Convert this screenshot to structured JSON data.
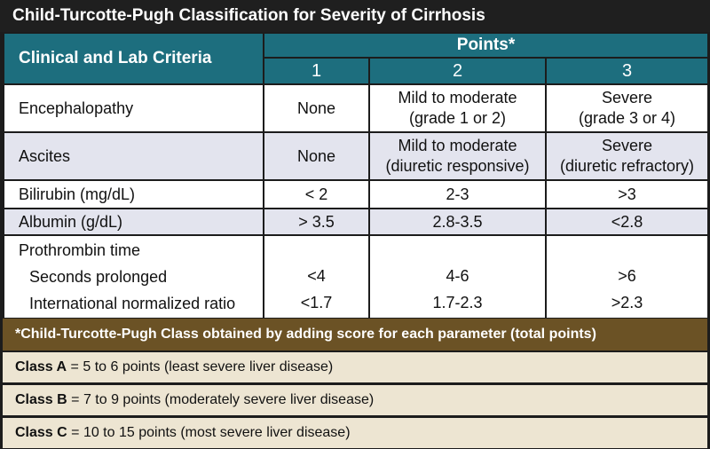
{
  "title": "Child-Turcotte-Pugh Classification for Severity of Cirrhosis",
  "header": {
    "criteria_label": "Clinical and Lab Criteria",
    "points_label": "Points*",
    "point_columns": [
      "1",
      "2",
      "3"
    ]
  },
  "rows": [
    {
      "criterion": "Encephalopathy",
      "p1": "None",
      "p2_line1": "Mild to moderate",
      "p2_line2": "(grade 1 or 2)",
      "p3_line1": "Severe",
      "p3_line2": "(grade 3 or 4)"
    },
    {
      "criterion": "Ascites",
      "p1": "None",
      "p2_line1": "Mild to moderate",
      "p2_line2": "(diuretic responsive)",
      "p3_line1": "Severe",
      "p3_line2": "(diuretic refractory)"
    },
    {
      "criterion": "Bilirubin (mg/dL)",
      "p1": "< 2",
      "p2": "2-3",
      "p3": ">3"
    },
    {
      "criterion": "Albumin (g/dL)",
      "p1": "> 3.5",
      "p2": "2.8-3.5",
      "p3": "<2.8"
    }
  ],
  "prothrombin": {
    "label": "Prothrombin time",
    "seconds_label": "Seconds prolonged",
    "seconds_p1": "<4",
    "seconds_p2": "4-6",
    "seconds_p3": ">6",
    "inr_label": "International normalized ratio",
    "inr_p1": "<1.7",
    "inr_p2": "1.7-2.3",
    "inr_p3": ">2.3"
  },
  "footnote": "*Child-Turcotte-Pugh Class obtained by adding score for each parameter (total points)",
  "classes": [
    {
      "name": "Class A",
      "desc": " = 5 to 6 points (least severe liver disease)"
    },
    {
      "name": "Class B",
      "desc": " = 7 to 9 points (moderately severe liver disease)"
    },
    {
      "name": "Class C",
      "desc": " = 10 to 15 points (most severe liver disease)"
    }
  ],
  "colors": {
    "header_teal": "#1d6e7e",
    "footer_brown": "#6b5225",
    "class_beige": "#ede5d2",
    "row_shade": "#e3e4ee"
  }
}
